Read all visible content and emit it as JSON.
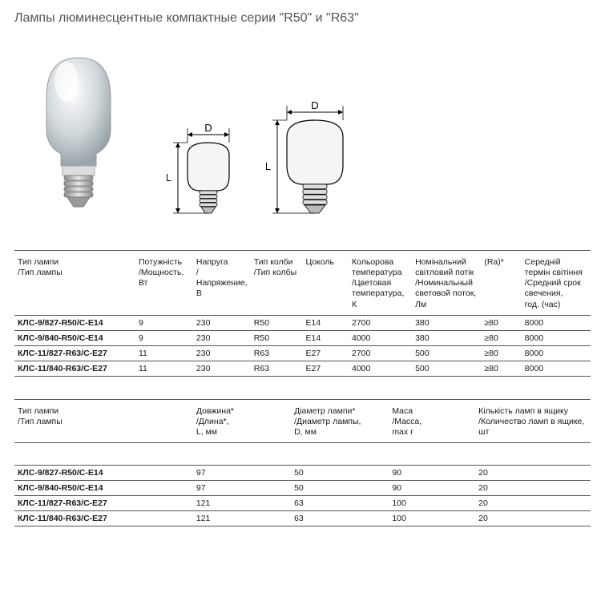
{
  "title": "Лампы люминесцентные компактные серии \"R50\" и \"R63\"",
  "diagram": {
    "labels": {
      "D": "D",
      "L": "L"
    },
    "small": {
      "bulb_w": 52,
      "bulb_h": 60,
      "base_w": 22,
      "base_h": 28,
      "L": 88
    },
    "large": {
      "bulb_w": 70,
      "bulb_h": 80,
      "base_w": 30,
      "base_h": 36,
      "L": 116
    },
    "stroke": "#000000",
    "fill": "#f5f5f5"
  },
  "table1": {
    "headers": [
      "Тип лампи\n/Тип лампы",
      "Потужність\n/Мощность,\nВт",
      "Напруга\n/Напряжение,\nВ",
      "Тип колби\n/Тип колбы",
      "Цоколь",
      "Кольорова\nтемпература\n/Цветовая\nтемпература,\nК",
      "Номінальний\nсвітловий потік\n/Номинальный\nсветовой поток,\nЛм",
      "(Ra)*",
      "Середній\nтермін світіння\n/Средний срок\nсвечения,\nгод. (час)"
    ],
    "col_widths": [
      "21%",
      "10%",
      "10%",
      "9%",
      "8%",
      "11%",
      "12%",
      "7%",
      "12%"
    ],
    "rows": [
      [
        "КЛС-9/827-R50/С-E14",
        "9",
        "230",
        "R50",
        "E14",
        "2700",
        "380",
        "≥80",
        "8000"
      ],
      [
        "КЛС-9/840-R50/С-E14",
        "9",
        "230",
        "R50",
        "E14",
        "4000",
        "380",
        "≥80",
        "8000"
      ],
      [
        "КЛС-11/827-R63/С-E27",
        "11",
        "230",
        "R63",
        "E27",
        "2700",
        "500",
        "≥80",
        "8000"
      ],
      [
        "КЛС-11/840-R63/С-E27",
        "11",
        "230",
        "R63",
        "E27",
        "4000",
        "500",
        "≥80",
        "8000"
      ]
    ]
  },
  "table2": {
    "headers": [
      "Тип лампи\n/Тип лампы",
      "Довжина*\n/Длина*,\nL, мм",
      "Діаметр лампи*\n/Диаметр лампы,\nD, мм",
      "Маса\n/Масса,\nmax г",
      "Кількість ламп в ящику\n/Количество ламп в ящике,\nшт"
    ],
    "col_widths": [
      "31%",
      "17%",
      "17%",
      "15%",
      "20%"
    ],
    "rows": [
      [
        "КЛС-9/827-R50/С-E14",
        "97",
        "50",
        "90",
        "20"
      ],
      [
        "КЛС-9/840-R50/С-E14",
        "97",
        "50",
        "90",
        "20"
      ],
      [
        "КЛС-11/827-R63/С-E27",
        "121",
        "63",
        "100",
        "20"
      ],
      [
        "КЛС-11/840-R63/С-E27",
        "121",
        "63",
        "100",
        "20"
      ]
    ]
  }
}
